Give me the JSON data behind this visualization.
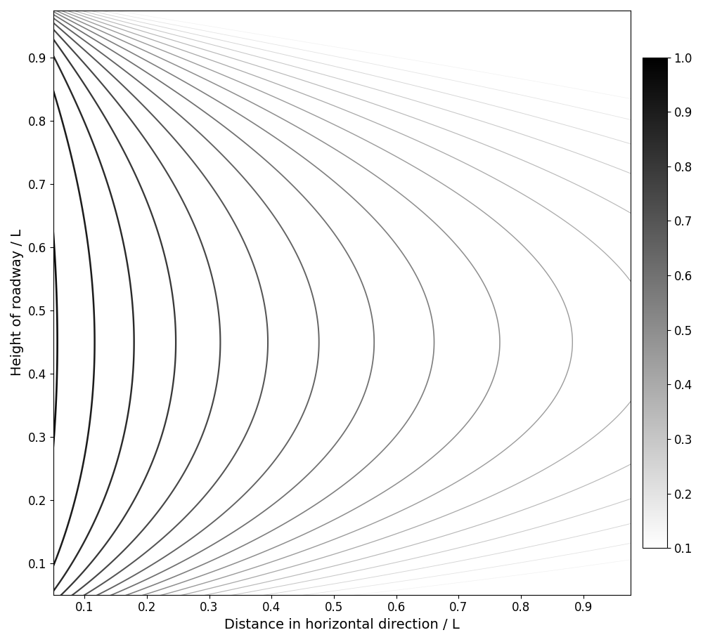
{
  "xlabel": "Distance in horizontal direction / L",
  "ylabel": "Height of roadway / L",
  "xlim": [
    0.05,
    0.975
  ],
  "ylim": [
    0.05,
    0.975
  ],
  "xticks": [
    0.1,
    0.2,
    0.3,
    0.4,
    0.5,
    0.6,
    0.7,
    0.8,
    0.9
  ],
  "yticks": [
    0.1,
    0.2,
    0.3,
    0.4,
    0.5,
    0.6,
    0.7,
    0.8,
    0.9
  ],
  "colorbar_ticks": [
    0.1,
    0.2,
    0.3,
    0.4,
    0.5,
    0.6,
    0.7,
    0.8,
    0.9,
    1.0
  ],
  "contour_levels": [
    0.1,
    0.15,
    0.2,
    0.25,
    0.3,
    0.35,
    0.4,
    0.45,
    0.5,
    0.55,
    0.6,
    0.65,
    0.7,
    0.75,
    0.8,
    0.85,
    0.9,
    0.95,
    1.0
  ],
  "vmin": 0.1,
  "vmax": 1.0,
  "A": 1.1,
  "alpha": 0.6,
  "beta": 1.2,
  "eps": 0.005,
  "nx": 500,
  "ny": 500,
  "background_color": "#ffffff",
  "figsize": [
    10.0,
    9.14
  ],
  "dpi": 100,
  "xlabel_fontsize": 14,
  "ylabel_fontsize": 14,
  "tick_fontsize": 12,
  "cbar_tick_fontsize": 12
}
